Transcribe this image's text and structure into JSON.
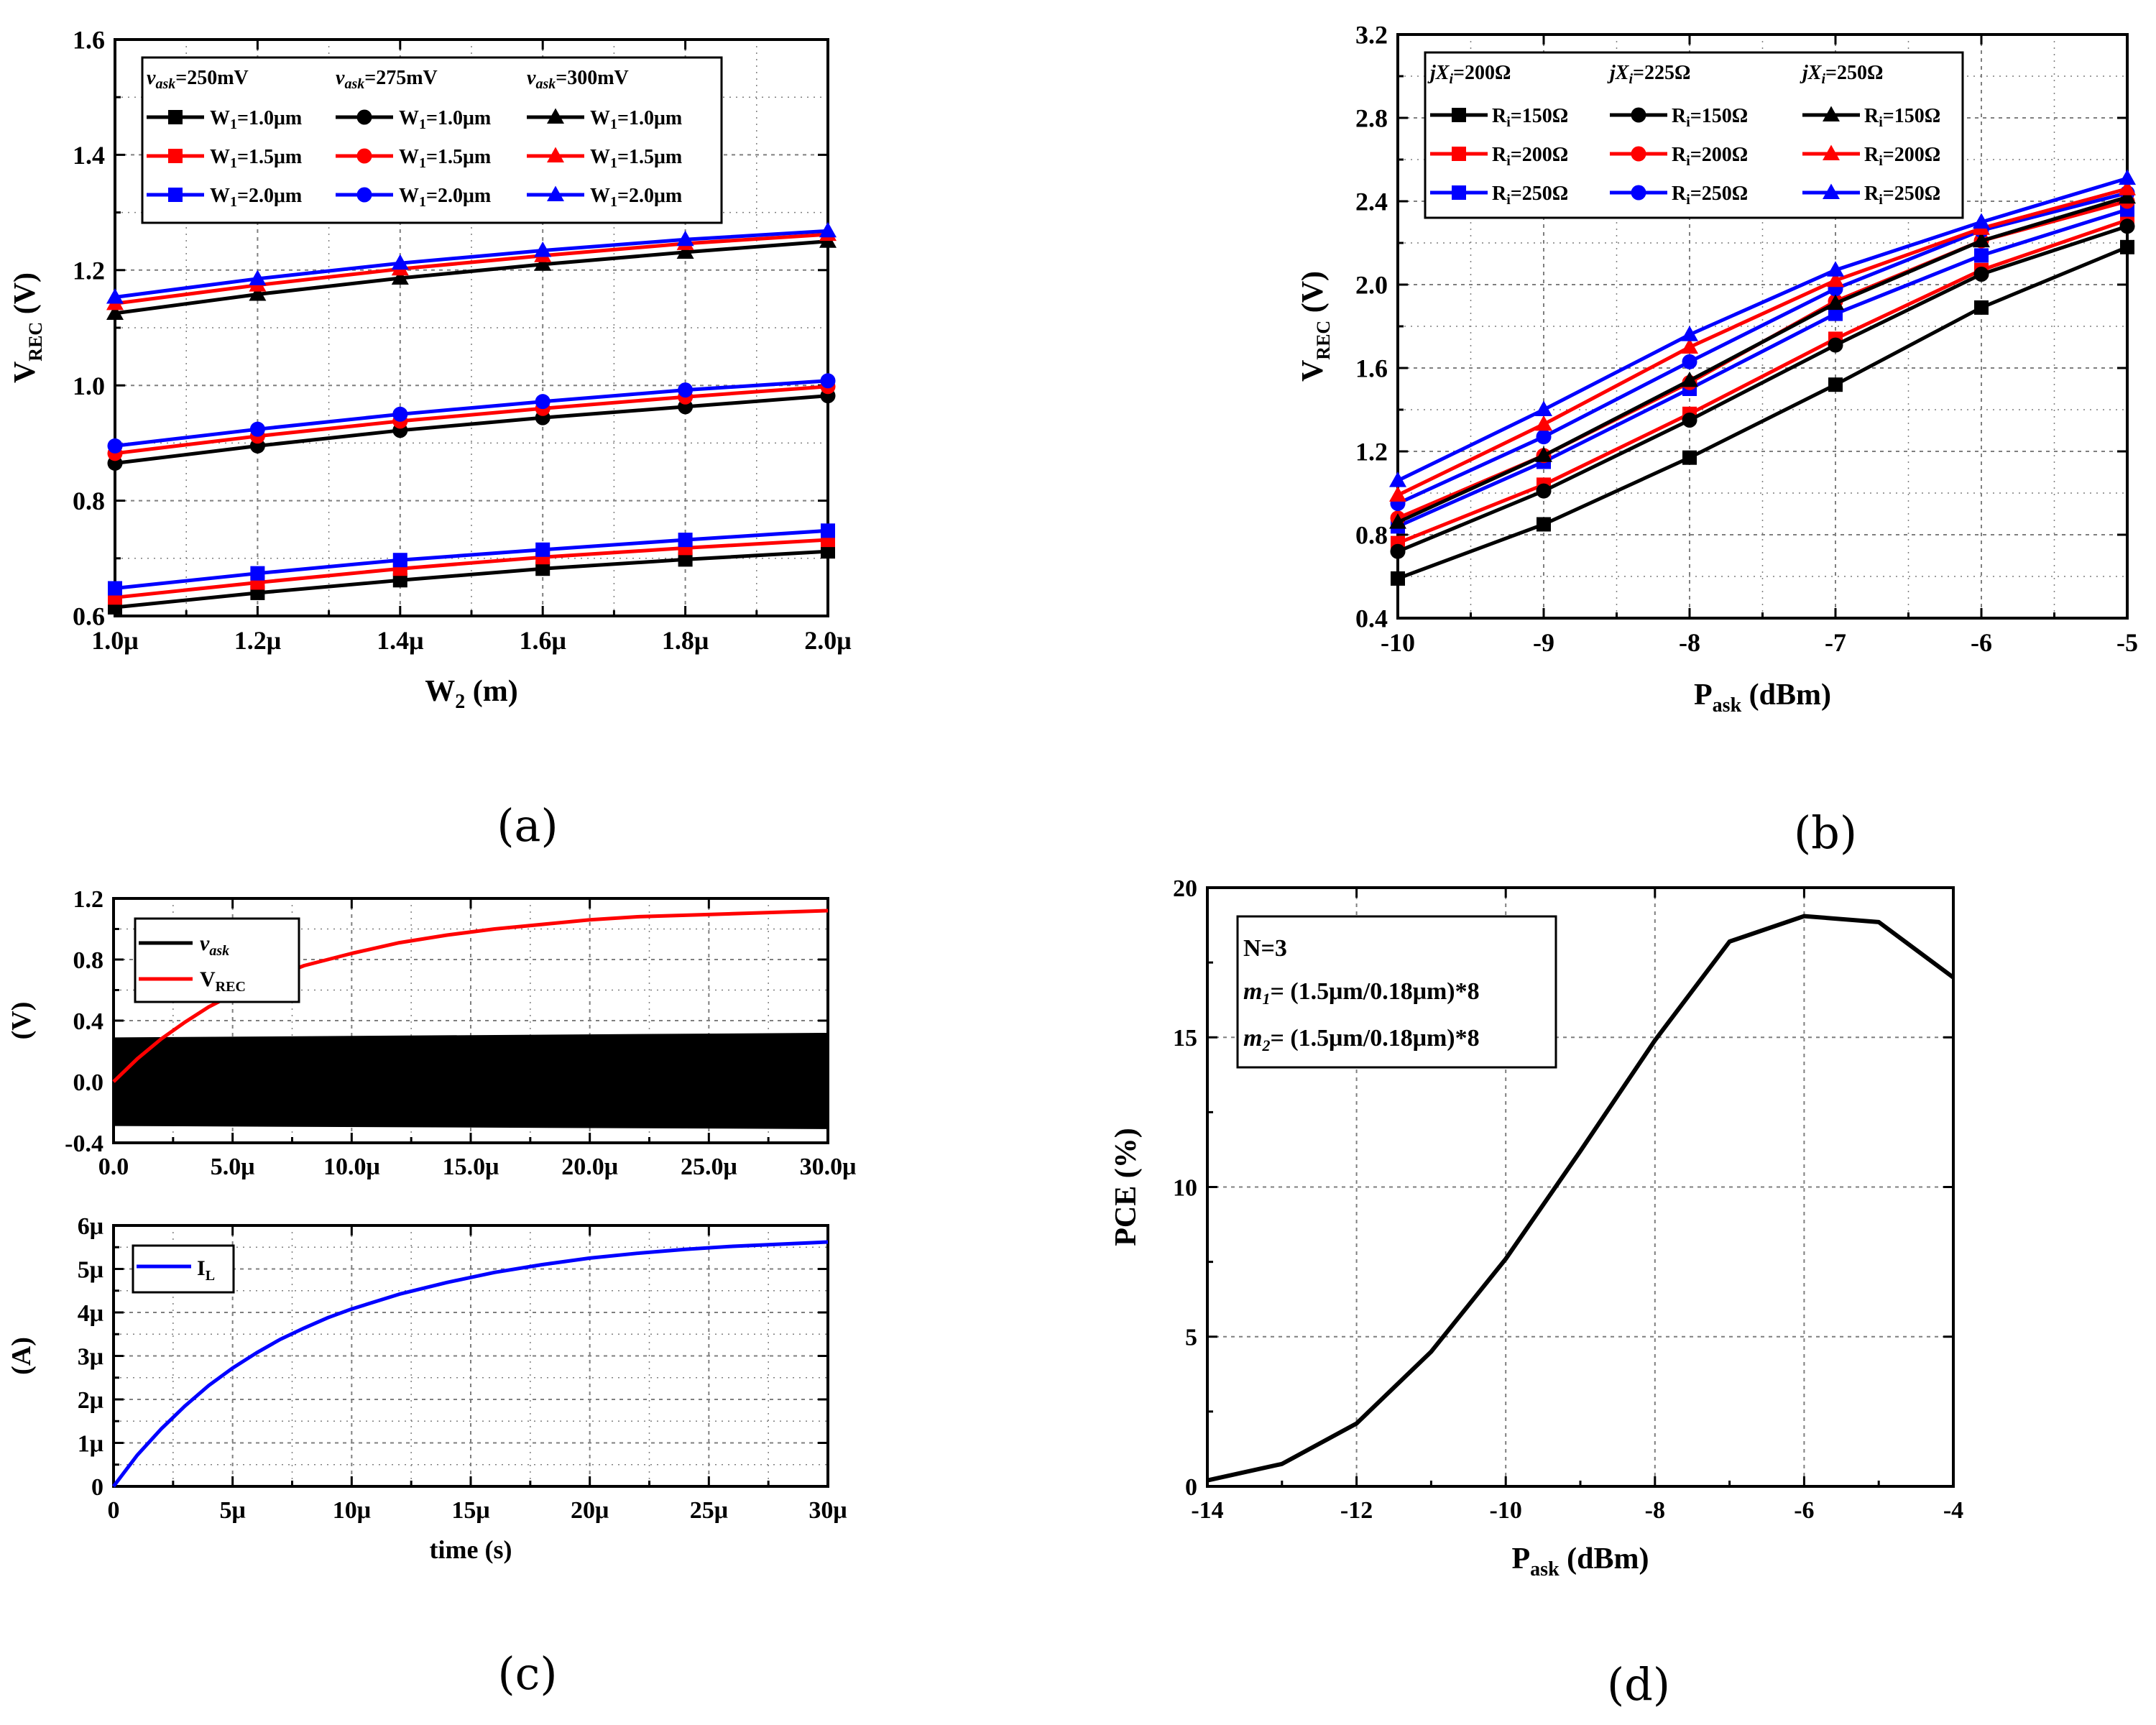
{
  "colors": {
    "black": "#000000",
    "red": "#ff0000",
    "blue": "#0000ff",
    "grid": "#7f7f7f"
  },
  "panels": {
    "a": {
      "caption": "(a)"
    },
    "b": {
      "caption": "(b)"
    },
    "c": {
      "caption": "(c)"
    },
    "d": {
      "caption": "(d)"
    }
  },
  "chart_data": [
    {
      "id": "a",
      "type": "line",
      "xlabel": "W2 (m)",
      "ylabel": "VREC (V)",
      "xlim": [
        1.0,
        2.0
      ],
      "ylim": [
        0.6,
        1.6
      ],
      "xticks": [
        1.0,
        1.2,
        1.4,
        1.6,
        1.8,
        2.0
      ],
      "xtick_labels": [
        "1.0μ",
        "1.2μ",
        "1.4μ",
        "1.6μ",
        "1.8μ",
        "2.0μ"
      ],
      "yticks": [
        0.6,
        0.8,
        1.0,
        1.2,
        1.4,
        1.6
      ],
      "ytick_labels": [
        "0.6",
        "0.8",
        "1.0",
        "1.2",
        "1.4",
        "1.6"
      ],
      "grid": true,
      "legend_location": "top-left",
      "legend_groups": [
        "vask=250mV",
        "vask=275mV",
        "vask=300mV"
      ],
      "x": [
        1.0,
        1.2,
        1.4,
        1.6,
        1.8,
        2.0
      ],
      "series": [
        {
          "name": "W1=1.0μm",
          "group": 0,
          "color": "black",
          "marker": "square",
          "values": [
            0.615,
            0.64,
            0.662,
            0.682,
            0.698,
            0.712
          ]
        },
        {
          "name": "W1=1.5μm",
          "group": 0,
          "color": "red",
          "marker": "square",
          "values": [
            0.632,
            0.658,
            0.682,
            0.702,
            0.718,
            0.732
          ]
        },
        {
          "name": "W1=2.0μm",
          "group": 0,
          "color": "blue",
          "marker": "square",
          "values": [
            0.648,
            0.674,
            0.697,
            0.715,
            0.732,
            0.748
          ]
        },
        {
          "name": "W1=1.0μm",
          "group": 1,
          "color": "black",
          "marker": "circle",
          "values": [
            0.865,
            0.895,
            0.922,
            0.944,
            0.963,
            0.982
          ]
        },
        {
          "name": "W1=1.5μm",
          "group": 1,
          "color": "red",
          "marker": "circle",
          "values": [
            0.882,
            0.912,
            0.938,
            0.96,
            0.98,
            0.998
          ]
        },
        {
          "name": "W1=2.0μm",
          "group": 1,
          "color": "blue",
          "marker": "circle",
          "values": [
            0.895,
            0.924,
            0.95,
            0.972,
            0.992,
            1.008
          ]
        },
        {
          "name": "W1=1.0μm",
          "group": 2,
          "color": "black",
          "marker": "triangle",
          "values": [
            1.125,
            1.158,
            1.186,
            1.21,
            1.231,
            1.25
          ]
        },
        {
          "name": "W1=1.5μm",
          "group": 2,
          "color": "red",
          "marker": "triangle",
          "values": [
            1.142,
            1.174,
            1.202,
            1.225,
            1.246,
            1.262
          ]
        },
        {
          "name": "W1=2.0μm",
          "group": 2,
          "color": "blue",
          "marker": "triangle",
          "values": [
            1.153,
            1.185,
            1.212,
            1.234,
            1.253,
            1.268
          ]
        }
      ]
    },
    {
      "id": "b",
      "type": "line",
      "xlabel": "Pask (dBm)",
      "ylabel": "VREC (V)",
      "xlim": [
        -10,
        -5
      ],
      "ylim": [
        0.4,
        3.2
      ],
      "xticks": [
        -10,
        -9,
        -8,
        -7,
        -6,
        -5
      ],
      "xtick_labels": [
        "-10",
        "-9",
        "-8",
        "-7",
        "-6",
        "-5"
      ],
      "yticks": [
        0.4,
        0.8,
        1.2,
        1.6,
        2.0,
        2.4,
        2.8,
        3.2
      ],
      "ytick_labels": [
        "0.4",
        "0.8",
        "1.2",
        "1.6",
        "2.0",
        "2.4",
        "2.8",
        "3.2"
      ],
      "grid": true,
      "legend_location": "top-left",
      "legend_groups": [
        "jXi=200Ω",
        "jXi=225Ω",
        "jXi=250Ω"
      ],
      "x": [
        -10,
        -9,
        -8,
        -7,
        -6,
        -5
      ],
      "series": [
        {
          "name": "Ri=150Ω",
          "group": 0,
          "color": "black",
          "marker": "square",
          "values": [
            0.59,
            0.85,
            1.17,
            1.52,
            1.89,
            2.18
          ]
        },
        {
          "name": "Ri=200Ω",
          "group": 0,
          "color": "red",
          "marker": "square",
          "values": [
            0.76,
            1.04,
            1.38,
            1.74,
            2.07,
            2.31
          ]
        },
        {
          "name": "Ri=250Ω",
          "group": 0,
          "color": "blue",
          "marker": "square",
          "values": [
            0.84,
            1.15,
            1.5,
            1.86,
            2.14,
            2.36
          ]
        },
        {
          "name": "Ri=150Ω",
          "group": 1,
          "color": "black",
          "marker": "circle",
          "values": [
            0.72,
            1.01,
            1.35,
            1.71,
            2.05,
            2.28
          ]
        },
        {
          "name": "Ri=200Ω",
          "group": 1,
          "color": "red",
          "marker": "circle",
          "values": [
            0.88,
            1.18,
            1.53,
            1.92,
            2.21,
            2.4
          ]
        },
        {
          "name": "Ri=250Ω",
          "group": 1,
          "color": "blue",
          "marker": "circle",
          "values": [
            0.95,
            1.27,
            1.63,
            1.98,
            2.26,
            2.44
          ]
        },
        {
          "name": "Ri=150Ω",
          "group": 2,
          "color": "black",
          "marker": "triangle",
          "values": [
            0.86,
            1.18,
            1.54,
            1.91,
            2.21,
            2.42
          ]
        },
        {
          "name": "Ri=200Ω",
          "group": 2,
          "color": "red",
          "marker": "triangle",
          "values": [
            0.99,
            1.33,
            1.7,
            2.02,
            2.27,
            2.46
          ]
        },
        {
          "name": "Ri=250Ω",
          "group": 2,
          "color": "blue",
          "marker": "triangle",
          "values": [
            1.06,
            1.4,
            1.76,
            2.07,
            2.3,
            2.51
          ]
        }
      ]
    },
    {
      "id": "c1",
      "type": "line",
      "xlabel": "",
      "ylabel": "(V)",
      "xlim": [
        0,
        30
      ],
      "ylim": [
        -0.4,
        1.2
      ],
      "xticks": [
        0,
        5,
        10,
        15,
        20,
        25,
        30
      ],
      "xtick_labels": [
        "0.0",
        "5.0μ",
        "10.0μ",
        "15.0μ",
        "20.0μ",
        "25.0μ",
        "30.0μ"
      ],
      "yticks": [
        -0.4,
        0.0,
        0.4,
        0.8,
        1.2
      ],
      "ytick_labels": [
        "-0.4",
        "0.0",
        "0.4",
        "0.8",
        "1.2"
      ],
      "grid": true,
      "legend_location": "top-left",
      "series": [
        {
          "name": "vask",
          "color": "black",
          "style": "envelope",
          "x": [
            0,
            30
          ],
          "upper": [
            0.29,
            0.32
          ],
          "lower": [
            -0.29,
            -0.31
          ]
        },
        {
          "name": "VREC",
          "color": "red",
          "x": [
            0,
            1,
            2,
            3,
            4,
            5,
            6,
            7,
            8,
            9,
            10,
            12,
            14,
            16,
            18,
            20,
            22,
            24,
            26,
            28,
            30
          ],
          "values": [
            0.0,
            0.15,
            0.28,
            0.39,
            0.49,
            0.57,
            0.64,
            0.7,
            0.76,
            0.8,
            0.84,
            0.91,
            0.96,
            1.0,
            1.03,
            1.06,
            1.08,
            1.09,
            1.1,
            1.11,
            1.12
          ]
        }
      ]
    },
    {
      "id": "c2",
      "type": "line",
      "xlabel": "time (s)",
      "ylabel": "(A)",
      "xlim": [
        0,
        30
      ],
      "ylim": [
        0,
        6
      ],
      "xticks": [
        0,
        5,
        10,
        15,
        20,
        25,
        30
      ],
      "xtick_labels": [
        "0",
        "5μ",
        "10μ",
        "15μ",
        "20μ",
        "25μ",
        "30μ"
      ],
      "yticks": [
        0,
        1,
        2,
        3,
        4,
        5,
        6
      ],
      "ytick_labels": [
        "0",
        "1μ",
        "2μ",
        "3μ",
        "4μ",
        "5μ",
        "6μ"
      ],
      "grid": true,
      "legend_location": "top-left",
      "series": [
        {
          "name": "IL",
          "color": "blue",
          "x": [
            0,
            1,
            2,
            3,
            4,
            5,
            6,
            7,
            8,
            9,
            10,
            12,
            14,
            16,
            18,
            20,
            22,
            24,
            26,
            28,
            30
          ],
          "values": [
            0.0,
            0.72,
            1.32,
            1.85,
            2.32,
            2.72,
            3.07,
            3.38,
            3.64,
            3.88,
            4.08,
            4.42,
            4.69,
            4.92,
            5.1,
            5.25,
            5.36,
            5.45,
            5.52,
            5.57,
            5.62
          ]
        }
      ]
    },
    {
      "id": "d",
      "type": "line",
      "xlabel": "Pask (dBm)",
      "ylabel": "PCE (%)",
      "xlim": [
        -14,
        -4
      ],
      "ylim": [
        0,
        20
      ],
      "xticks": [
        -14,
        -12,
        -10,
        -8,
        -6,
        -4
      ],
      "xtick_labels": [
        "-14",
        "-12",
        "-10",
        "-8",
        "-6",
        "-4"
      ],
      "yticks": [
        0,
        5,
        10,
        15,
        20
      ],
      "ytick_labels": [
        "0",
        "5",
        "10",
        "15",
        "20"
      ],
      "grid": true,
      "annotations": [
        "N=3",
        "m1= (1.5μm/0.18μm)*8",
        "m2= (1.5μm/0.18μm)*8"
      ],
      "x": [
        -14,
        -13,
        -12,
        -11,
        -10,
        -9,
        -8,
        -7,
        -6,
        -5,
        -4
      ],
      "series": [
        {
          "name": "",
          "color": "black",
          "values": [
            0.2,
            0.75,
            2.1,
            4.5,
            7.6,
            11.2,
            14.9,
            18.2,
            19.05,
            18.85,
            17.0
          ]
        }
      ]
    }
  ]
}
